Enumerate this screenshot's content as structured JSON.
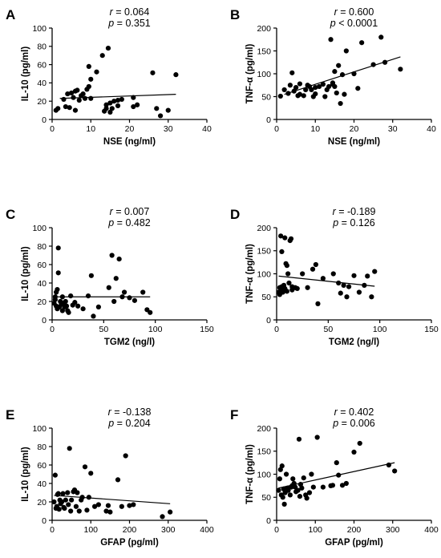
{
  "figure_title": "",
  "chart_data": [
    {
      "panel": "A",
      "type": "scatter",
      "stat_r": "0.064",
      "stat_p": "= 0.351",
      "xlabel": "NSE (ng/ml)",
      "ylabel": "IL-10 (pg/ml)",
      "xlim": [
        0,
        40
      ],
      "ylim": [
        0,
        100
      ],
      "xticks": [
        0,
        10,
        20,
        30,
        40
      ],
      "yticks": [
        0,
        20,
        40,
        60,
        80,
        100
      ],
      "fit": [
        [
          2,
          23
        ],
        [
          32,
          27.5
        ]
      ],
      "points": [
        [
          1,
          10
        ],
        [
          1.5,
          12
        ],
        [
          3,
          22
        ],
        [
          3.5,
          14
        ],
        [
          4,
          28
        ],
        [
          4.5,
          13
        ],
        [
          5,
          29
        ],
        [
          5.5,
          24
        ],
        [
          6,
          10
        ],
        [
          6,
          31
        ],
        [
          6.5,
          32
        ],
        [
          7,
          21
        ],
        [
          7.5,
          26
        ],
        [
          8,
          28
        ],
        [
          8.5,
          23
        ],
        [
          9,
          33
        ],
        [
          9.5,
          58
        ],
        [
          9.5,
          36
        ],
        [
          10,
          44
        ],
        [
          10,
          23
        ],
        [
          11.5,
          52
        ],
        [
          13,
          70
        ],
        [
          13.5,
          9
        ],
        [
          14,
          12
        ],
        [
          14,
          16
        ],
        [
          14.5,
          78
        ],
        [
          15,
          8
        ],
        [
          15,
          18
        ],
        [
          15.5,
          12
        ],
        [
          16,
          20
        ],
        [
          17,
          21
        ],
        [
          17,
          15
        ],
        [
          18,
          22
        ],
        [
          21,
          14
        ],
        [
          21,
          24
        ],
        [
          22,
          16
        ],
        [
          26,
          51
        ],
        [
          27,
          12
        ],
        [
          28,
          4
        ],
        [
          30,
          10
        ],
        [
          32,
          49
        ]
      ]
    },
    {
      "panel": "B",
      "type": "scatter",
      "stat_r": "0.600",
      "stat_p": "< 0.0001",
      "xlabel": "NSE (ng/ml)",
      "ylabel": "TNF-α (pg/ml)",
      "xlim": [
        0,
        40
      ],
      "ylim": [
        0,
        200
      ],
      "xticks": [
        0,
        10,
        20,
        30,
        40
      ],
      "yticks": [
        0,
        50,
        100,
        150,
        200
      ],
      "fit": [
        [
          2,
          55
        ],
        [
          32,
          137
        ]
      ],
      "points": [
        [
          1,
          51
        ],
        [
          2,
          65
        ],
        [
          3,
          57
        ],
        [
          3.5,
          75
        ],
        [
          4,
          102
        ],
        [
          4.5,
          62
        ],
        [
          5,
          70
        ],
        [
          5.5,
          52
        ],
        [
          6,
          55
        ],
        [
          6,
          78
        ],
        [
          7,
          52
        ],
        [
          7.5,
          65
        ],
        [
          8,
          75
        ],
        [
          8.5,
          72
        ],
        [
          9,
          65
        ],
        [
          9.5,
          50
        ],
        [
          10,
          70
        ],
        [
          10,
          56
        ],
        [
          11,
          72
        ],
        [
          12,
          77
        ],
        [
          12.5,
          50
        ],
        [
          13,
          65
        ],
        [
          13.5,
          72
        ],
        [
          14,
          175
        ],
        [
          14.5,
          77
        ],
        [
          14.5,
          80
        ],
        [
          15,
          105
        ],
        [
          15,
          72
        ],
        [
          15.5,
          58
        ],
        [
          16,
          118
        ],
        [
          16.5,
          35
        ],
        [
          17,
          98
        ],
        [
          17.5,
          55
        ],
        [
          18,
          150
        ],
        [
          20,
          100
        ],
        [
          21,
          68
        ],
        [
          22,
          168
        ],
        [
          25,
          120
        ],
        [
          27,
          180
        ],
        [
          28,
          125
        ],
        [
          32,
          110
        ]
      ]
    },
    {
      "panel": "C",
      "type": "scatter",
      "stat_r": "0.007",
      "stat_p": "= 0.482",
      "xlabel": "TGM2 (ng/l)",
      "ylabel": "IL-10 (pg/ml)",
      "xlim": [
        0,
        150
      ],
      "ylim": [
        0,
        100
      ],
      "xticks": [
        0,
        50,
        100,
        150
      ],
      "yticks": [
        0,
        20,
        40,
        60,
        80,
        100
      ],
      "fit": [
        [
          2,
          25
        ],
        [
          95,
          25
        ]
      ],
      "points": [
        [
          2,
          18
        ],
        [
          3,
          22
        ],
        [
          3,
          25
        ],
        [
          4,
          15
        ],
        [
          4,
          30
        ],
        [
          5,
          12
        ],
        [
          5,
          33
        ],
        [
          6,
          51
        ],
        [
          6,
          78
        ],
        [
          7,
          14
        ],
        [
          8,
          20
        ],
        [
          9,
          17
        ],
        [
          10,
          10
        ],
        [
          10,
          25
        ],
        [
          11,
          18
        ],
        [
          12,
          14
        ],
        [
          13,
          20
        ],
        [
          14,
          15
        ],
        [
          15,
          10
        ],
        [
          16,
          8
        ],
        [
          18,
          26
        ],
        [
          20,
          16
        ],
        [
          22,
          19
        ],
        [
          25,
          15
        ],
        [
          30,
          12
        ],
        [
          35,
          26
        ],
        [
          38,
          48
        ],
        [
          40,
          4
        ],
        [
          45,
          14
        ],
        [
          55,
          35
        ],
        [
          58,
          70
        ],
        [
          60,
          20
        ],
        [
          62,
          45
        ],
        [
          65,
          66
        ],
        [
          68,
          25
        ],
        [
          70,
          30
        ],
        [
          75,
          24
        ],
        [
          80,
          21
        ],
        [
          88,
          30
        ],
        [
          92,
          11
        ],
        [
          95,
          8
        ]
      ]
    },
    {
      "panel": "D",
      "type": "scatter",
      "stat_r": "-0.189",
      "stat_p": "= 0.126",
      "xlabel": "TGM2 (ng/l)",
      "ylabel": "TNF-α (pg/ml)",
      "xlim": [
        0,
        150
      ],
      "ylim": [
        0,
        200
      ],
      "xticks": [
        0,
        50,
        100,
        150
      ],
      "yticks": [
        0,
        50,
        100,
        150,
        200
      ],
      "fit": [
        [
          2,
          95
        ],
        [
          95,
          73
        ]
      ],
      "points": [
        [
          2,
          60
        ],
        [
          3,
          55
        ],
        [
          3,
          70
        ],
        [
          4,
          182
        ],
        [
          4,
          65
        ],
        [
          5,
          148
        ],
        [
          5,
          72
        ],
        [
          6,
          60
        ],
        [
          7,
          75
        ],
        [
          8,
          68
        ],
        [
          8,
          178
        ],
        [
          9,
          122
        ],
        [
          10,
          62
        ],
        [
          10,
          118
        ],
        [
          11,
          100
        ],
        [
          12,
          80
        ],
        [
          13,
          172
        ],
        [
          14,
          176
        ],
        [
          15,
          65
        ],
        [
          15,
          72
        ],
        [
          18,
          70
        ],
        [
          20,
          68
        ],
        [
          25,
          100
        ],
        [
          30,
          70
        ],
        [
          35,
          110
        ],
        [
          38,
          120
        ],
        [
          40,
          35
        ],
        [
          45,
          90
        ],
        [
          55,
          100
        ],
        [
          60,
          80
        ],
        [
          62,
          58
        ],
        [
          65,
          75
        ],
        [
          68,
          50
        ],
        [
          70,
          72
        ],
        [
          75,
          96
        ],
        [
          80,
          60
        ],
        [
          85,
          75
        ],
        [
          88,
          95
        ],
        [
          92,
          50
        ],
        [
          95,
          105
        ]
      ]
    },
    {
      "panel": "E",
      "type": "scatter",
      "stat_r": "-0.138",
      "stat_p": "= 0.204",
      "xlabel": "GFAP (pg/ml)",
      "ylabel": "IL-10 (pg/ml)",
      "xlim": [
        0,
        400
      ],
      "ylim": [
        0,
        100
      ],
      "xticks": [
        0,
        100,
        200,
        300,
        400
      ],
      "yticks": [
        0,
        20,
        40,
        60,
        80,
        100
      ],
      "fit": [
        [
          5,
          27
        ],
        [
          305,
          18
        ]
      ],
      "points": [
        [
          5,
          20
        ],
        [
          8,
          49
        ],
        [
          10,
          13
        ],
        [
          12,
          15
        ],
        [
          14,
          28
        ],
        [
          16,
          29
        ],
        [
          18,
          12
        ],
        [
          20,
          22
        ],
        [
          22,
          18
        ],
        [
          25,
          20
        ],
        [
          28,
          29
        ],
        [
          30,
          14
        ],
        [
          32,
          13
        ],
        [
          35,
          22
        ],
        [
          40,
          30
        ],
        [
          42,
          17
        ],
        [
          45,
          78
        ],
        [
          48,
          10
        ],
        [
          50,
          22
        ],
        [
          55,
          31
        ],
        [
          58,
          33
        ],
        [
          62,
          15
        ],
        [
          65,
          30
        ],
        [
          70,
          10
        ],
        [
          75,
          22
        ],
        [
          78,
          25
        ],
        [
          85,
          58
        ],
        [
          90,
          11
        ],
        [
          95,
          25
        ],
        [
          100,
          51
        ],
        [
          110,
          15
        ],
        [
          120,
          17
        ],
        [
          140,
          10
        ],
        [
          145,
          16
        ],
        [
          150,
          9
        ],
        [
          170,
          44
        ],
        [
          180,
          15
        ],
        [
          190,
          70
        ],
        [
          200,
          16
        ],
        [
          210,
          17
        ],
        [
          285,
          4
        ],
        [
          305,
          9
        ]
      ]
    },
    {
      "panel": "F",
      "type": "scatter",
      "stat_r": "0.402",
      "stat_p": "= 0.006",
      "xlabel": "GFAP (pg/ml)",
      "ylabel": "TNF-α (pg/ml)",
      "xlim": [
        0,
        400
      ],
      "ylim": [
        0,
        200
      ],
      "xticks": [
        0,
        100,
        200,
        300,
        400
      ],
      "yticks": [
        0,
        50,
        100,
        150,
        200
      ],
      "fit": [
        [
          5,
          70
        ],
        [
          305,
          125
        ]
      ],
      "points": [
        [
          5,
          65
        ],
        [
          8,
          90
        ],
        [
          10,
          110
        ],
        [
          12,
          55
        ],
        [
          14,
          118
        ],
        [
          16,
          50
        ],
        [
          18,
          68
        ],
        [
          20,
          35
        ],
        [
          22,
          60
        ],
        [
          25,
          100
        ],
        [
          28,
          70
        ],
        [
          30,
          65
        ],
        [
          35,
          55
        ],
        [
          38,
          72
        ],
        [
          40,
          75
        ],
        [
          42,
          90
        ],
        [
          45,
          80
        ],
        [
          48,
          72
        ],
        [
          50,
          62
        ],
        [
          55,
          65
        ],
        [
          58,
          176
        ],
        [
          60,
          52
        ],
        [
          62,
          78
        ],
        [
          65,
          70
        ],
        [
          70,
          92
        ],
        [
          75,
          55
        ],
        [
          78,
          48
        ],
        [
          85,
          60
        ],
        [
          90,
          100
        ],
        [
          95,
          72
        ],
        [
          105,
          180
        ],
        [
          120,
          72
        ],
        [
          140,
          75
        ],
        [
          145,
          76
        ],
        [
          155,
          125
        ],
        [
          160,
          98
        ],
        [
          170,
          76
        ],
        [
          180,
          80
        ],
        [
          200,
          148
        ],
        [
          215,
          167
        ],
        [
          290,
          120
        ],
        [
          305,
          107
        ]
      ]
    }
  ]
}
